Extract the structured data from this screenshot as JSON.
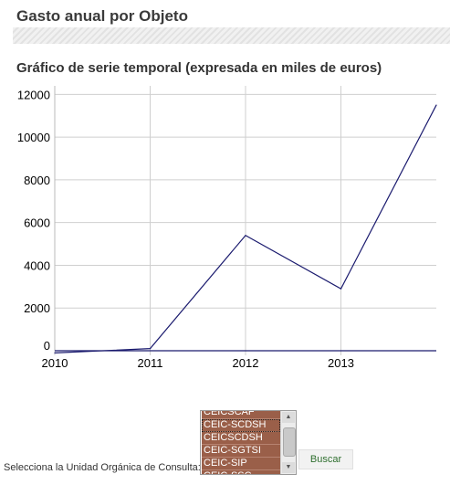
{
  "page": {
    "title": "Gasto anual por Objeto",
    "chart_title": "Gráfico de serie temporal (expresada en miles de euros)"
  },
  "chart_data": {
    "type": "line",
    "title": "Gráfico de serie temporal (expresada en miles de euros)",
    "xlabel": "",
    "ylabel": "",
    "x": [
      2010,
      2011,
      2012,
      2013,
      2014
    ],
    "xticks": [
      "2010",
      "2011",
      "2012",
      "2013"
    ],
    "yticks": [
      "0",
      "2000",
      "4000",
      "6000",
      "8000",
      "10000",
      "12000"
    ],
    "ylim": [
      0,
      12400
    ],
    "xlim": [
      2010,
      2014
    ],
    "grid": true,
    "series": [
      {
        "values": [
          -100,
          100,
          5400,
          2900,
          11500
        ],
        "color": "#1a1a6e"
      }
    ]
  },
  "consulta": {
    "label": "Selecciona la Unidad Orgánica de Consulta:",
    "options": [
      "CEICSCAF",
      "CEIC-SCDSH",
      "CEICSCDSH",
      "CEIC-SGTSI",
      "CEIC-SIP",
      "CEIC-SSC"
    ],
    "selected_index": 1,
    "button_label": "Buscar",
    "option_bg": "#9a5f49"
  }
}
